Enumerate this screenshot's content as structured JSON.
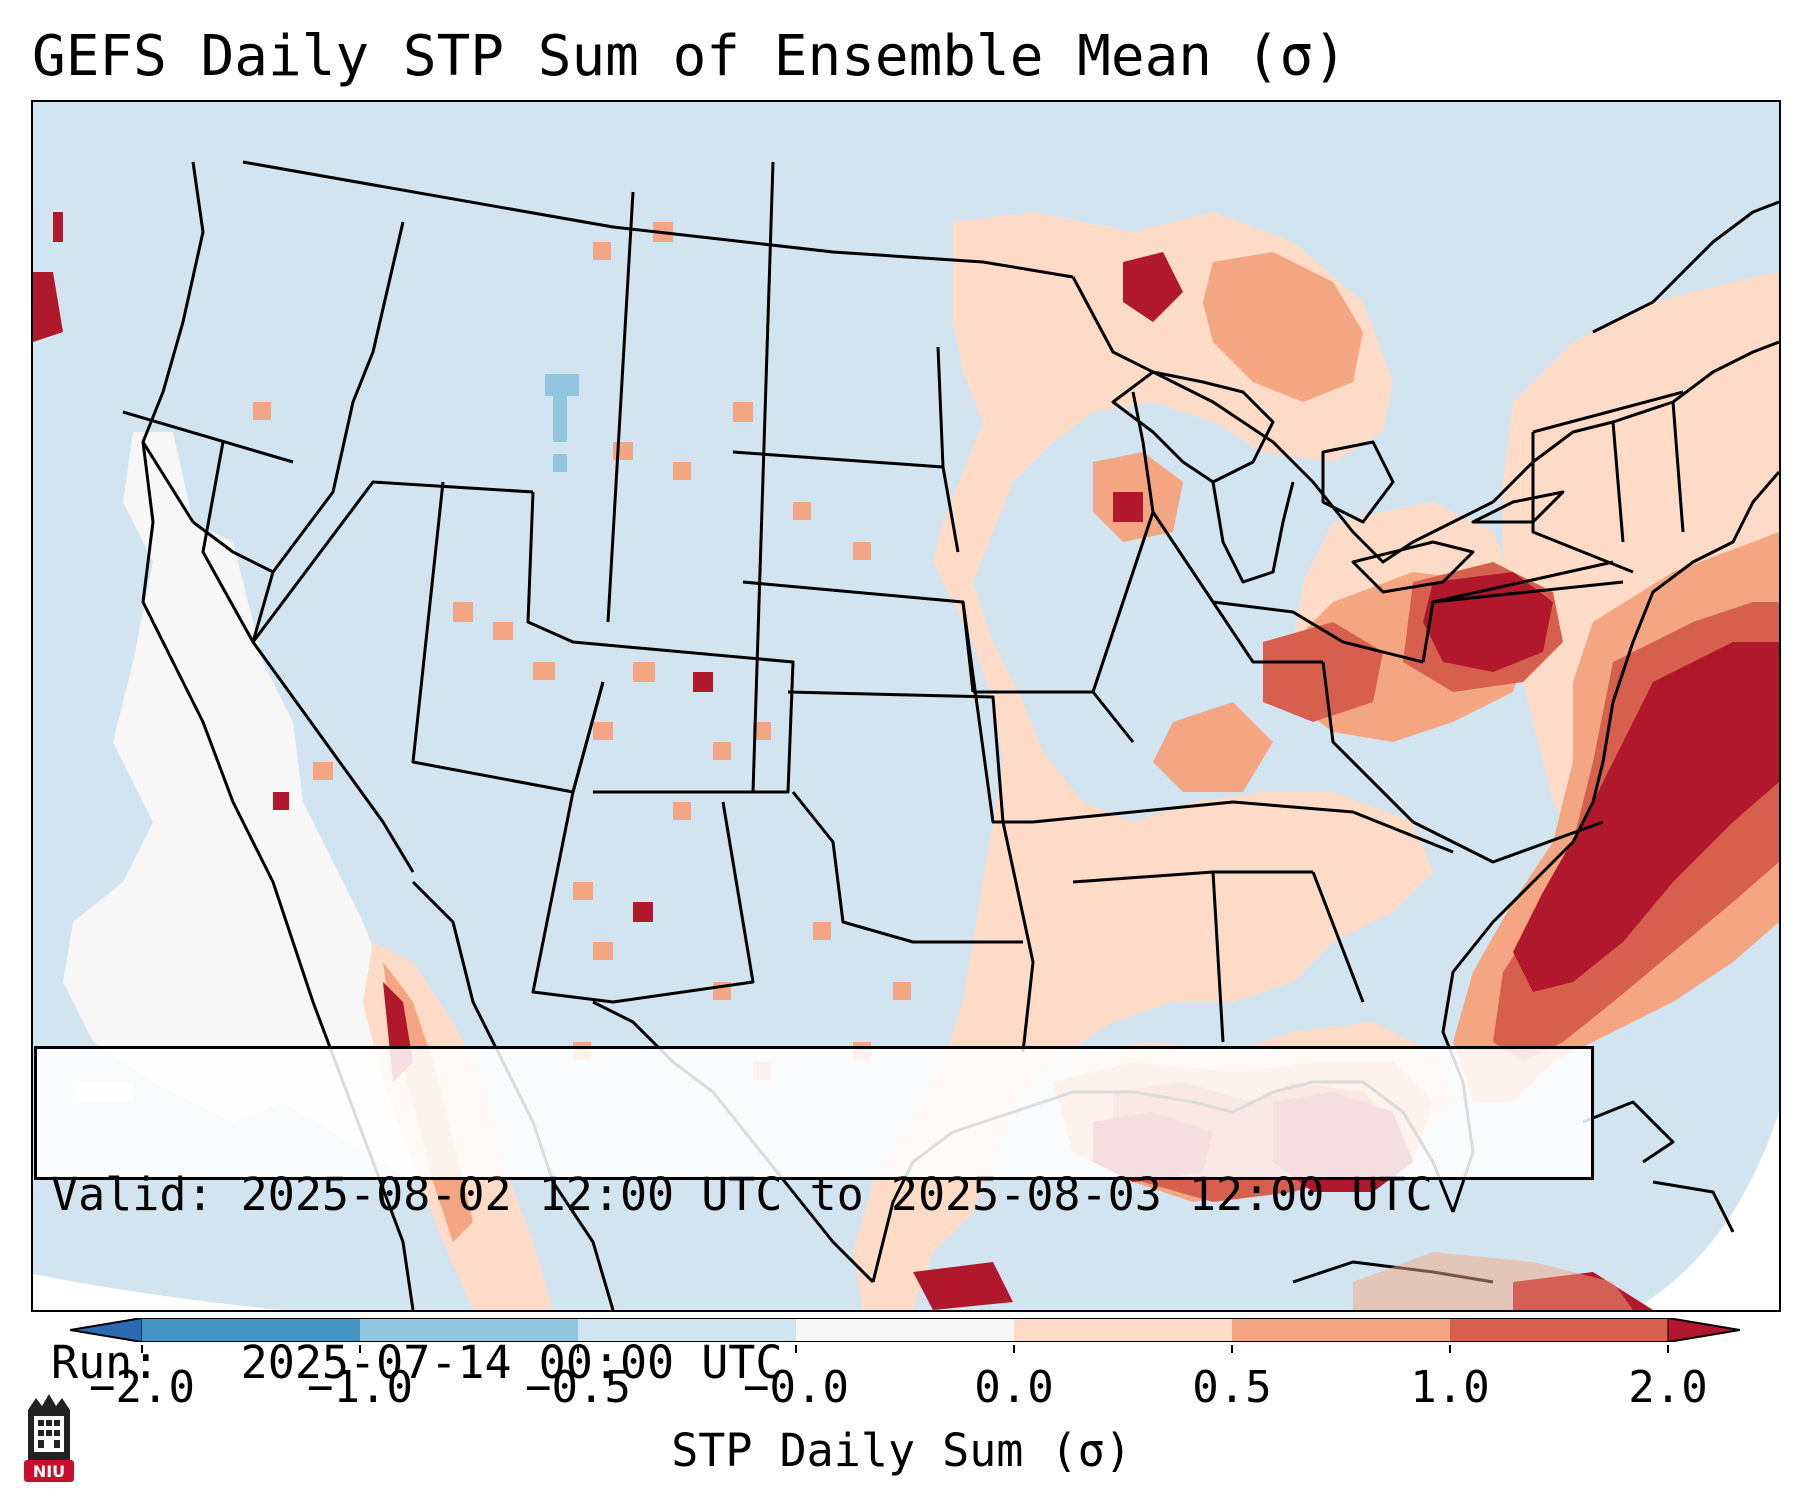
{
  "title": "GEFS Daily STP Sum of Ensemble Mean (σ)",
  "info": {
    "valid_line": "Valid: 2025-08-02 12:00 UTC to 2025-08-03 12:00 UTC",
    "run_line": "Run:   2025-07-14 00:00 UTC"
  },
  "colorbar": {
    "label": "STP Daily Sum (σ)",
    "ticks": [
      "−2.0",
      "−1.0",
      "−0.5",
      "−0.0",
      "0.0",
      "0.5",
      "1.0",
      "2.0"
    ],
    "levels": [
      {
        "range": "< -2.0",
        "color": "#2b6cb0"
      },
      {
        "range": "-2.0 to -1.0",
        "color": "#4393c3"
      },
      {
        "range": "-1.0 to -0.5",
        "color": "#92c5de"
      },
      {
        "range": "-0.5 to -0.0",
        "color": "#d1e5f0"
      },
      {
        "range": "-0.0 to 0.0",
        "color": "#f7f7f7"
      },
      {
        "range": "0.0 to 0.5",
        "color": "#fddbc7"
      },
      {
        "range": "0.5 to 1.0",
        "color": "#f4a582"
      },
      {
        "range": "1.0 to 2.0",
        "color": "#d6604d"
      },
      {
        "range": "> 2.0",
        "color": "#b2182b"
      }
    ]
  },
  "map": {
    "region": "Continental United States",
    "background_level_color": "#d2e4f0",
    "features": [
      "state-borders",
      "coastlines",
      "international-borders"
    ]
  },
  "logo": {
    "text": "NIU",
    "color": "#c8102e"
  }
}
